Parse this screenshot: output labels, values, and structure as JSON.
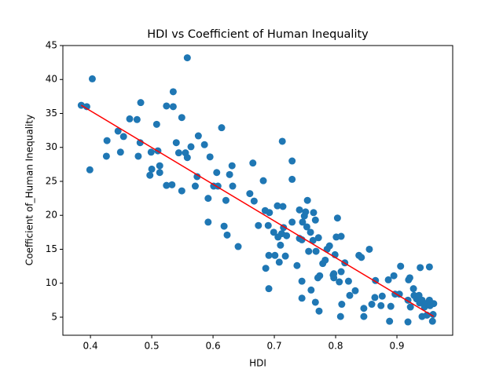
{
  "chart_data": {
    "type": "scatter",
    "title": "HDI vs Coefficient of Human Inequality",
    "x_label": "HDI",
    "y_label": "Coefficient of_Human Inequality",
    "color": "#1f77b4",
    "x": [
      0.385,
      0.394,
      0.403,
      0.399,
      0.427,
      0.426,
      0.445,
      0.449,
      0.454,
      0.464,
      0.476,
      0.482,
      0.481,
      0.478,
      0.499,
      0.5,
      0.497,
      0.508,
      0.51,
      0.513,
      0.513,
      0.524,
      0.524,
      0.533,
      0.535,
      0.535,
      0.54,
      0.544,
      0.549,
      0.549,
      0.555,
      0.558,
      0.558,
      0.564,
      0.571,
      0.574,
      0.576,
      0.586,
      0.592,
      0.592,
      0.595,
      0.601,
      0.608,
      0.606,
      0.614,
      0.618,
      0.621,
      0.623,
      0.627,
      0.631,
      0.632,
      0.641,
      0.66,
      0.665,
      0.667,
      0.674,
      0.682,
      0.685,
      0.686,
      0.69,
      0.691,
      0.691,
      0.692,
      0.699,
      0.701,
      0.705,
      0.706,
      0.708,
      0.71,
      0.712,
      0.713,
      0.714,
      0.715,
      0.718,
      0.72,
      0.729,
      0.729,
      0.729,
      0.737,
      0.741,
      0.741,
      0.745,
      0.745,
      0.745,
      0.746,
      0.749,
      0.751,
      0.753,
      0.754,
      0.756,
      0.759,
      0.76,
      0.763,
      0.764,
      0.767,
      0.767,
      0.768,
      0.771,
      0.772,
      0.773,
      0.774,
      0.779,
      0.783,
      0.786,
      0.79,
      0.796,
      0.797,
      0.797,
      0.799,
      0.801,
      0.803,
      0.806,
      0.808,
      0.809,
      0.809,
      0.81,
      0.815,
      0.821,
      0.823,
      0.832,
      0.838,
      0.842,
      0.846,
      0.846,
      0.855,
      0.859,
      0.864,
      0.865,
      0.874,
      0.876,
      0.886,
      0.888,
      0.89,
      0.895,
      0.897,
      0.904,
      0.906,
      0.918,
      0.918,
      0.919,
      0.921,
      0.922,
      0.927,
      0.928,
      0.932,
      0.936,
      0.937,
      0.938,
      0.941,
      0.941,
      0.945,
      0.947,
      0.949,
      0.953,
      0.953,
      0.954,
      0.958,
      0.959,
      0.96
    ],
    "values": [
      36.2,
      36.0,
      40.1,
      26.7,
      31.0,
      28.7,
      32.4,
      29.3,
      31.6,
      34.2,
      34.1,
      36.6,
      30.7,
      28.7,
      29.3,
      26.8,
      25.9,
      33.4,
      29.5,
      27.3,
      26.3,
      36.1,
      24.4,
      24.5,
      36.0,
      38.2,
      30.7,
      29.2,
      34.4,
      23.6,
      29.2,
      28.5,
      43.2,
      30.1,
      24.3,
      25.7,
      31.7,
      30.4,
      22.5,
      19.0,
      28.6,
      24.3,
      24.3,
      26.3,
      32.9,
      18.4,
      22.2,
      17.1,
      26.0,
      27.3,
      24.3,
      15.4,
      23.2,
      27.7,
      22.1,
      18.5,
      25.1,
      20.7,
      12.2,
      18.5,
      9.2,
      14.1,
      20.4,
      17.5,
      14.1,
      21.4,
      16.8,
      13.1,
      15.6,
      17.3,
      30.9,
      21.3,
      18.2,
      14.0,
      17.0,
      19.0,
      28.0,
      25.3,
      12.6,
      16.6,
      20.8,
      10.3,
      16.4,
      7.8,
      19.0,
      19.9,
      20.5,
      18.3,
      22.2,
      14.7,
      17.5,
      9.0,
      16.3,
      20.4,
      7.2,
      19.3,
      14.7,
      10.8,
      16.7,
      5.9,
      11.1,
      12.9,
      13.4,
      15.0,
      15.5,
      11.2,
      11.4,
      10.8,
      14.2,
      16.8,
      19.6,
      10.2,
      5.1,
      16.9,
      11.7,
      6.9,
      13.0,
      10.3,
      8.2,
      8.9,
      14.1,
      13.8,
      5.1,
      6.3,
      15.0,
      6.9,
      7.9,
      10.4,
      6.7,
      8.1,
      10.5,
      4.4,
      6.6,
      11.1,
      8.4,
      8.4,
      12.5,
      4.3,
      7.5,
      10.5,
      10.8,
      6.5,
      9.2,
      8.2,
      7.7,
      8.2,
      7.1,
      12.3,
      5.1,
      7.5,
      6.5,
      7.0,
      5.3,
      12.4,
      7.5,
      6.7,
      4.4,
      5.4,
      7.0
    ],
    "fit_line": {
      "x": [
        0.385,
        0.96
      ],
      "values": [
        36.2,
        5.1
      ],
      "color": "#ff0000"
    },
    "xlim": [
      0.355,
      0.991
    ],
    "ylim": [
      2.34,
      45
    ],
    "xticks": [
      0.4,
      0.5,
      0.6,
      0.7,
      0.8,
      0.9
    ],
    "yticks": [
      5,
      10,
      15,
      20,
      25,
      30,
      35,
      40,
      45
    ]
  }
}
